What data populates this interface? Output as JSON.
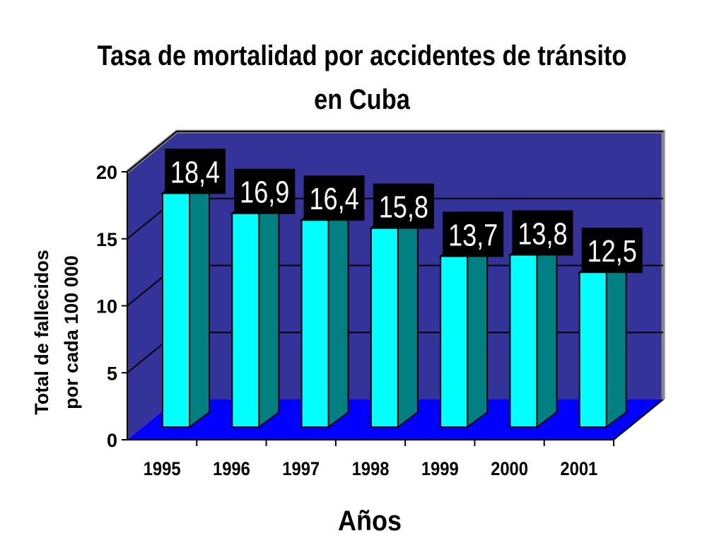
{
  "chart_data": {
    "type": "bar",
    "title_line1": "Tasa de mortalidad por accidentes de tránsito",
    "title_line2": "en Cuba",
    "categories": [
      "1995",
      "1996",
      "1997",
      "1998",
      "1999",
      "2000",
      "2001"
    ],
    "values": [
      18.4,
      16.9,
      16.4,
      15.8,
      13.7,
      13.8,
      12.5
    ],
    "value_labels": [
      "18,4",
      "16,9",
      "16,4",
      "15,8",
      "13,7",
      "13,8",
      "12,5"
    ],
    "xlabel": "Años",
    "ylabel_line1": "Total de fallecidos",
    "ylabel_line2": "por cada 100 000",
    "ylim": [
      0,
      20
    ],
    "yticks": [
      0,
      5,
      10,
      15,
      20
    ],
    "grid": true,
    "legend": "none",
    "colors": {
      "back_wall": "#333399",
      "floor": "#0000ff",
      "bar_front": "#00ffff",
      "bar_side": "#008080",
      "bar_top": "#00cccc",
      "label_box": "#000000"
    }
  }
}
